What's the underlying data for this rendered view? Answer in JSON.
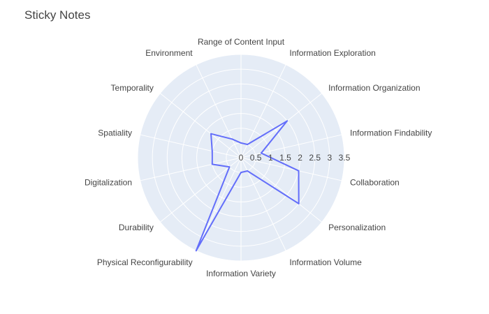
{
  "chart_data": {
    "type": "radar",
    "title": "Sticky Notes",
    "categories": [
      "Range of Content Input",
      "Information Exploration",
      "Information Organization",
      "Information Findability",
      "Collaboration",
      "Personalization",
      "Information Volume",
      "Information Variety",
      "Physical Reconfigurability",
      "Durability",
      "Digitalization",
      "Spatiality",
      "Temporality",
      "Environment"
    ],
    "values": [
      0.5,
      0.5,
      2.0,
      0.7,
      2.0,
      2.5,
      0.5,
      0.5,
      3.5,
      0.5,
      1.0,
      1.0,
      1.3,
      0.7
    ],
    "radial_axis": {
      "range": [
        0,
        3.5
      ],
      "ticks": [
        "0",
        "0.5",
        "1",
        "1.5",
        "2",
        "2.5",
        "3",
        "3.5"
      ],
      "tick_values": [
        0,
        0.5,
        1,
        1.5,
        2,
        2.5,
        3,
        3.5
      ]
    },
    "grid": true,
    "colors": {
      "line": "#636efa",
      "polar_bg": "#e5ecf6",
      "grid": "#ffffff",
      "text": "#444444"
    }
  }
}
